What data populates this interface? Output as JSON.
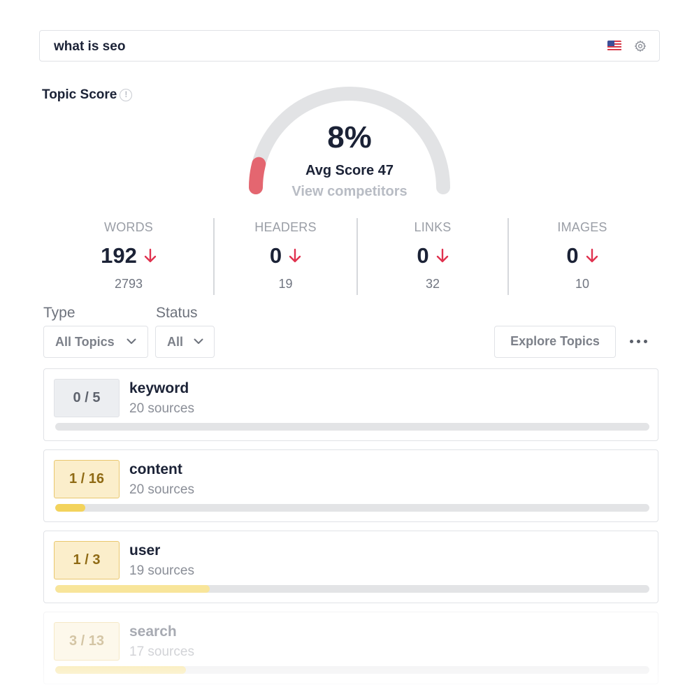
{
  "search": {
    "query": "what is seo",
    "flag_icon": "us-flag-icon",
    "settings_icon": "gear-icon"
  },
  "topic_score": {
    "title": "Topic Score",
    "info_icon_glyph": "!",
    "percent": "8%",
    "percent_value": 0.08,
    "avg_score": "Avg Score 47",
    "view_competitors": "View competitors",
    "gauge_fill_color": "#e46670",
    "gauge_track_color": "#e2e3e5"
  },
  "stats": [
    {
      "label": "WORDS",
      "value": "192",
      "target": "2793",
      "trend": "down"
    },
    {
      "label": "HEADERS",
      "value": "0",
      "target": "19",
      "trend": "down"
    },
    {
      "label": "LINKS",
      "value": "0",
      "target": "32",
      "trend": "down"
    },
    {
      "label": "IMAGES",
      "value": "0",
      "target": "10",
      "trend": "down"
    }
  ],
  "filters": {
    "type_label": "Type",
    "type_value": "All Topics",
    "status_label": "Status",
    "status_value": "All",
    "explore_button": "Explore Topics"
  },
  "topics": [
    {
      "score": "0 / 5",
      "name": "keyword",
      "sources": "20 sources",
      "progress": 0.0,
      "style": "grey"
    },
    {
      "score": "1 / 16",
      "name": "content",
      "sources": "20 sources",
      "progress": 0.05,
      "style": "yellow"
    },
    {
      "score": "1 / 3",
      "name": "user",
      "sources": "19 sources",
      "progress": 0.26,
      "style": "yellow"
    },
    {
      "score": "3 / 13",
      "name": "search",
      "sources": "17 sources",
      "progress": 0.22,
      "style": "yellow"
    }
  ],
  "colors": {
    "accent_red": "#e0324f",
    "bar_yellow_strong": "#f3d35c",
    "bar_yellow_light": "#f8e59a"
  }
}
